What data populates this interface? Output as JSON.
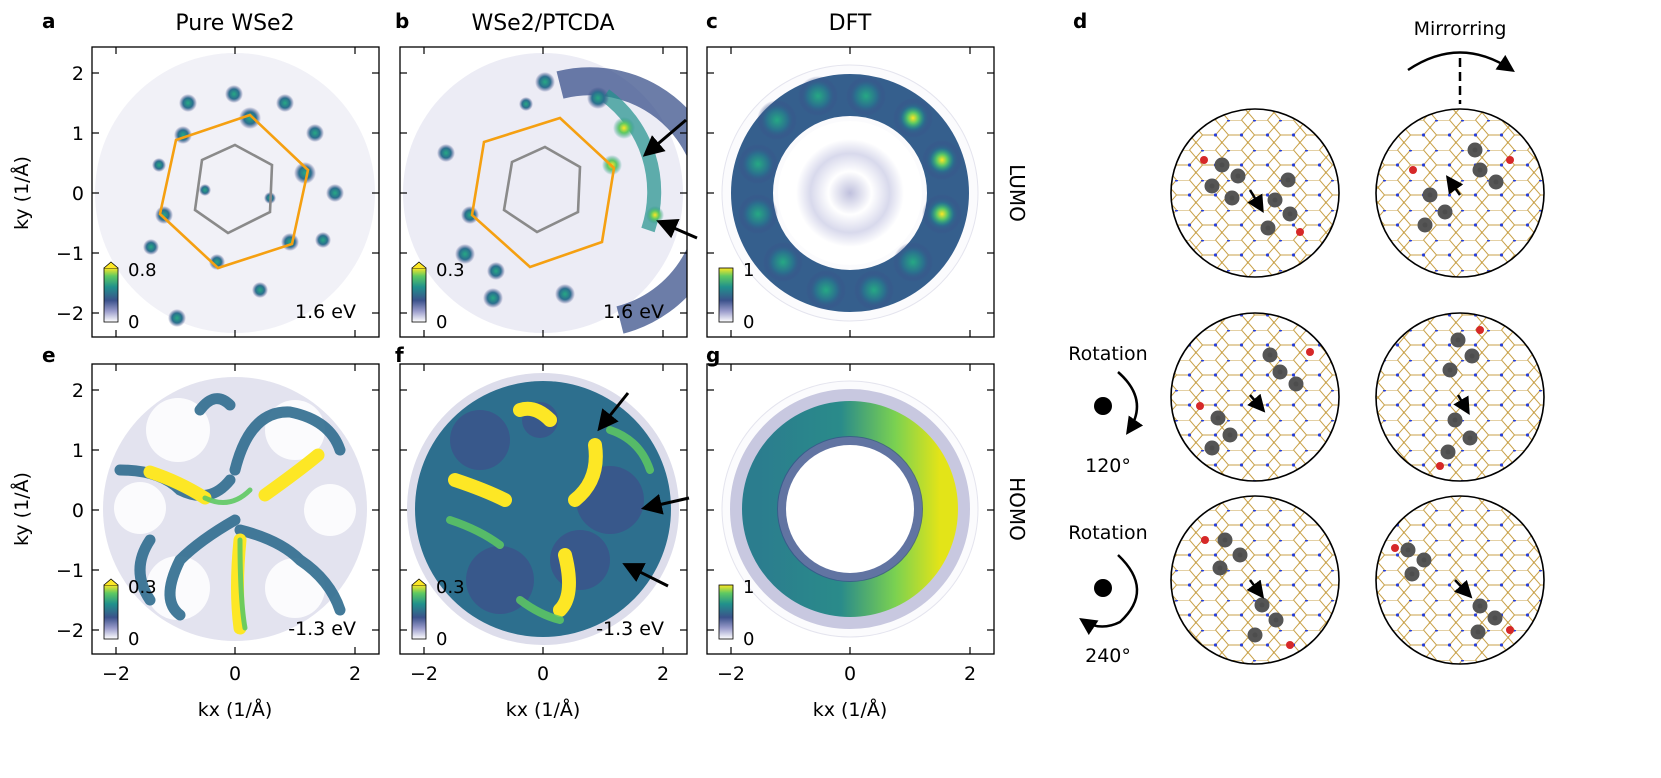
{
  "figure": {
    "panel_letters": [
      "a",
      "b",
      "c",
      "d",
      "e",
      "f",
      "g"
    ],
    "column_titles": {
      "a": "Pure WSe2",
      "b": "WSe2/PTCDA",
      "c": "DFT"
    },
    "row_labels": {
      "top": "LUMO",
      "bottom": "HOMO"
    },
    "axes": {
      "xlabel": "kx (1/Å)",
      "ylabel": "ky (1/Å)",
      "x_ticks": [
        "−2",
        "0",
        "2"
      ],
      "y_ticks": [
        "2",
        "1",
        "0",
        "−1",
        "−2"
      ],
      "xlim": [
        -2.4,
        2.4
      ],
      "ylim": [
        -2.4,
        2.4
      ]
    },
    "maps": [
      {
        "panel": "a",
        "colorbar_max": "0.8",
        "colorbar_min": "0",
        "energy": "1.6 eV"
      },
      {
        "panel": "b",
        "colorbar_max": "0.3",
        "colorbar_min": "0",
        "energy": "1.6 eV"
      },
      {
        "panel": "c",
        "colorbar_max": "1",
        "colorbar_min": "0",
        "energy": ""
      },
      {
        "panel": "e",
        "colorbar_max": "0.3",
        "colorbar_min": "0",
        "energy": "-1.3 eV"
      },
      {
        "panel": "f",
        "colorbar_max": "0.3",
        "colorbar_min": "0",
        "energy": "-1.3 eV"
      },
      {
        "panel": "g",
        "colorbar_max": "1",
        "colorbar_min": "0",
        "energy": ""
      }
    ],
    "panel_d": {
      "mirror_label": "Mirrorring",
      "rotations": [
        {
          "label": "Rotation",
          "angle": "120°"
        },
        {
          "label": "Rotation",
          "angle": "240°"
        }
      ]
    }
  }
}
